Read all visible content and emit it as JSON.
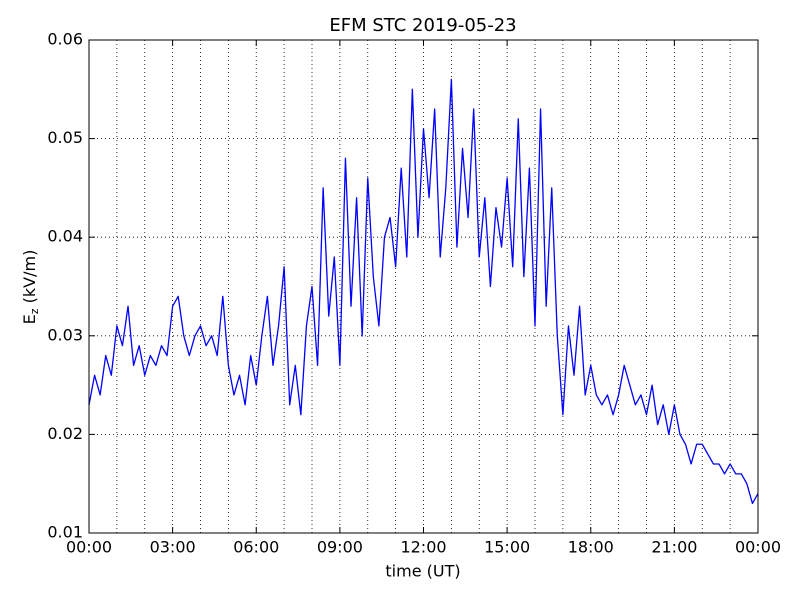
{
  "chart_data": {
    "type": "line",
    "title": "EFM STC    2019-05-23",
    "xlabel": "time (UT)",
    "ylabel": "E",
    "ylabel_sub": "z",
    "ylabel_rest": " (kV/m)",
    "xlim": [
      0,
      24
    ],
    "xticks": [
      {
        "value": 0,
        "label": "00:00"
      },
      {
        "value": 3,
        "label": "03:00"
      },
      {
        "value": 6,
        "label": "06:00"
      },
      {
        "value": 9,
        "label": "09:00"
      },
      {
        "value": 12,
        "label": "12:00"
      },
      {
        "value": 15,
        "label": "15:00"
      },
      {
        "value": 18,
        "label": "18:00"
      },
      {
        "value": 21,
        "label": "21:00"
      },
      {
        "value": 24,
        "label": "00:00"
      }
    ],
    "x_minor_ticks": [
      1,
      2,
      4,
      5,
      7,
      8,
      10,
      11,
      13,
      14,
      16,
      17,
      19,
      20,
      22,
      23
    ],
    "ylim": [
      0.01,
      0.06
    ],
    "yticks": [
      0.01,
      0.02,
      0.03,
      0.04,
      0.05,
      0.06
    ],
    "grid": true,
    "series": [
      {
        "color": "#0000ff",
        "x": [
          0,
          0.2,
          0.4,
          0.6,
          0.8,
          1,
          1.2,
          1.4,
          1.6,
          1.8,
          2,
          2.2,
          2.4,
          2.6,
          2.8,
          3,
          3.2,
          3.4,
          3.6,
          3.8,
          4,
          4.2,
          4.4,
          4.6,
          4.8,
          5,
          5.2,
          5.4,
          5.6,
          5.8,
          6,
          6.2,
          6.4,
          6.6,
          6.8,
          7,
          7.2,
          7.4,
          7.6,
          7.8,
          8,
          8.2,
          8.4,
          8.6,
          8.8,
          9,
          9.2,
          9.4,
          9.6,
          9.8,
          10,
          10.2,
          10.4,
          10.6,
          10.8,
          11,
          11.2,
          11.4,
          11.6,
          11.8,
          12,
          12.2,
          12.4,
          12.6,
          12.8,
          13,
          13.2,
          13.4,
          13.6,
          13.8,
          14,
          14.2,
          14.4,
          14.6,
          14.8,
          15,
          15.2,
          15.4,
          15.6,
          15.8,
          16,
          16.2,
          16.4,
          16.6,
          16.8,
          17,
          17.2,
          17.4,
          17.6,
          17.8,
          18,
          18.2,
          18.4,
          18.6,
          18.8,
          19,
          19.2,
          19.4,
          19.6,
          19.8,
          20,
          20.2,
          20.4,
          20.6,
          20.8,
          21,
          21.2,
          21.4,
          21.6,
          21.8,
          22,
          22.2,
          22.4,
          22.6,
          22.8,
          23,
          23.2,
          23.4,
          23.6,
          23.8,
          24
        ],
        "values": [
          0.023,
          0.026,
          0.024,
          0.028,
          0.026,
          0.031,
          0.029,
          0.033,
          0.027,
          0.029,
          0.026,
          0.028,
          0.027,
          0.029,
          0.028,
          0.033,
          0.034,
          0.03,
          0.028,
          0.03,
          0.031,
          0.029,
          0.03,
          0.028,
          0.034,
          0.027,
          0.024,
          0.026,
          0.023,
          0.028,
          0.025,
          0.03,
          0.034,
          0.027,
          0.031,
          0.037,
          0.023,
          0.027,
          0.022,
          0.031,
          0.035,
          0.027,
          0.045,
          0.032,
          0.038,
          0.027,
          0.048,
          0.033,
          0.044,
          0.03,
          0.046,
          0.036,
          0.031,
          0.04,
          0.042,
          0.037,
          0.047,
          0.038,
          0.055,
          0.04,
          0.051,
          0.044,
          0.053,
          0.038,
          0.045,
          0.056,
          0.039,
          0.049,
          0.042,
          0.053,
          0.038,
          0.044,
          0.035,
          0.043,
          0.039,
          0.046,
          0.037,
          0.052,
          0.036,
          0.047,
          0.031,
          0.053,
          0.033,
          0.045,
          0.03,
          0.022,
          0.031,
          0.026,
          0.033,
          0.024,
          0.027,
          0.024,
          0.023,
          0.024,
          0.022,
          0.024,
          0.027,
          0.025,
          0.023,
          0.024,
          0.022,
          0.025,
          0.021,
          0.023,
          0.02,
          0.023,
          0.02,
          0.019,
          0.017,
          0.019,
          0.019,
          0.018,
          0.017,
          0.017,
          0.016,
          0.017,
          0.016,
          0.016,
          0.015,
          0.013,
          0.014
        ]
      }
    ]
  }
}
